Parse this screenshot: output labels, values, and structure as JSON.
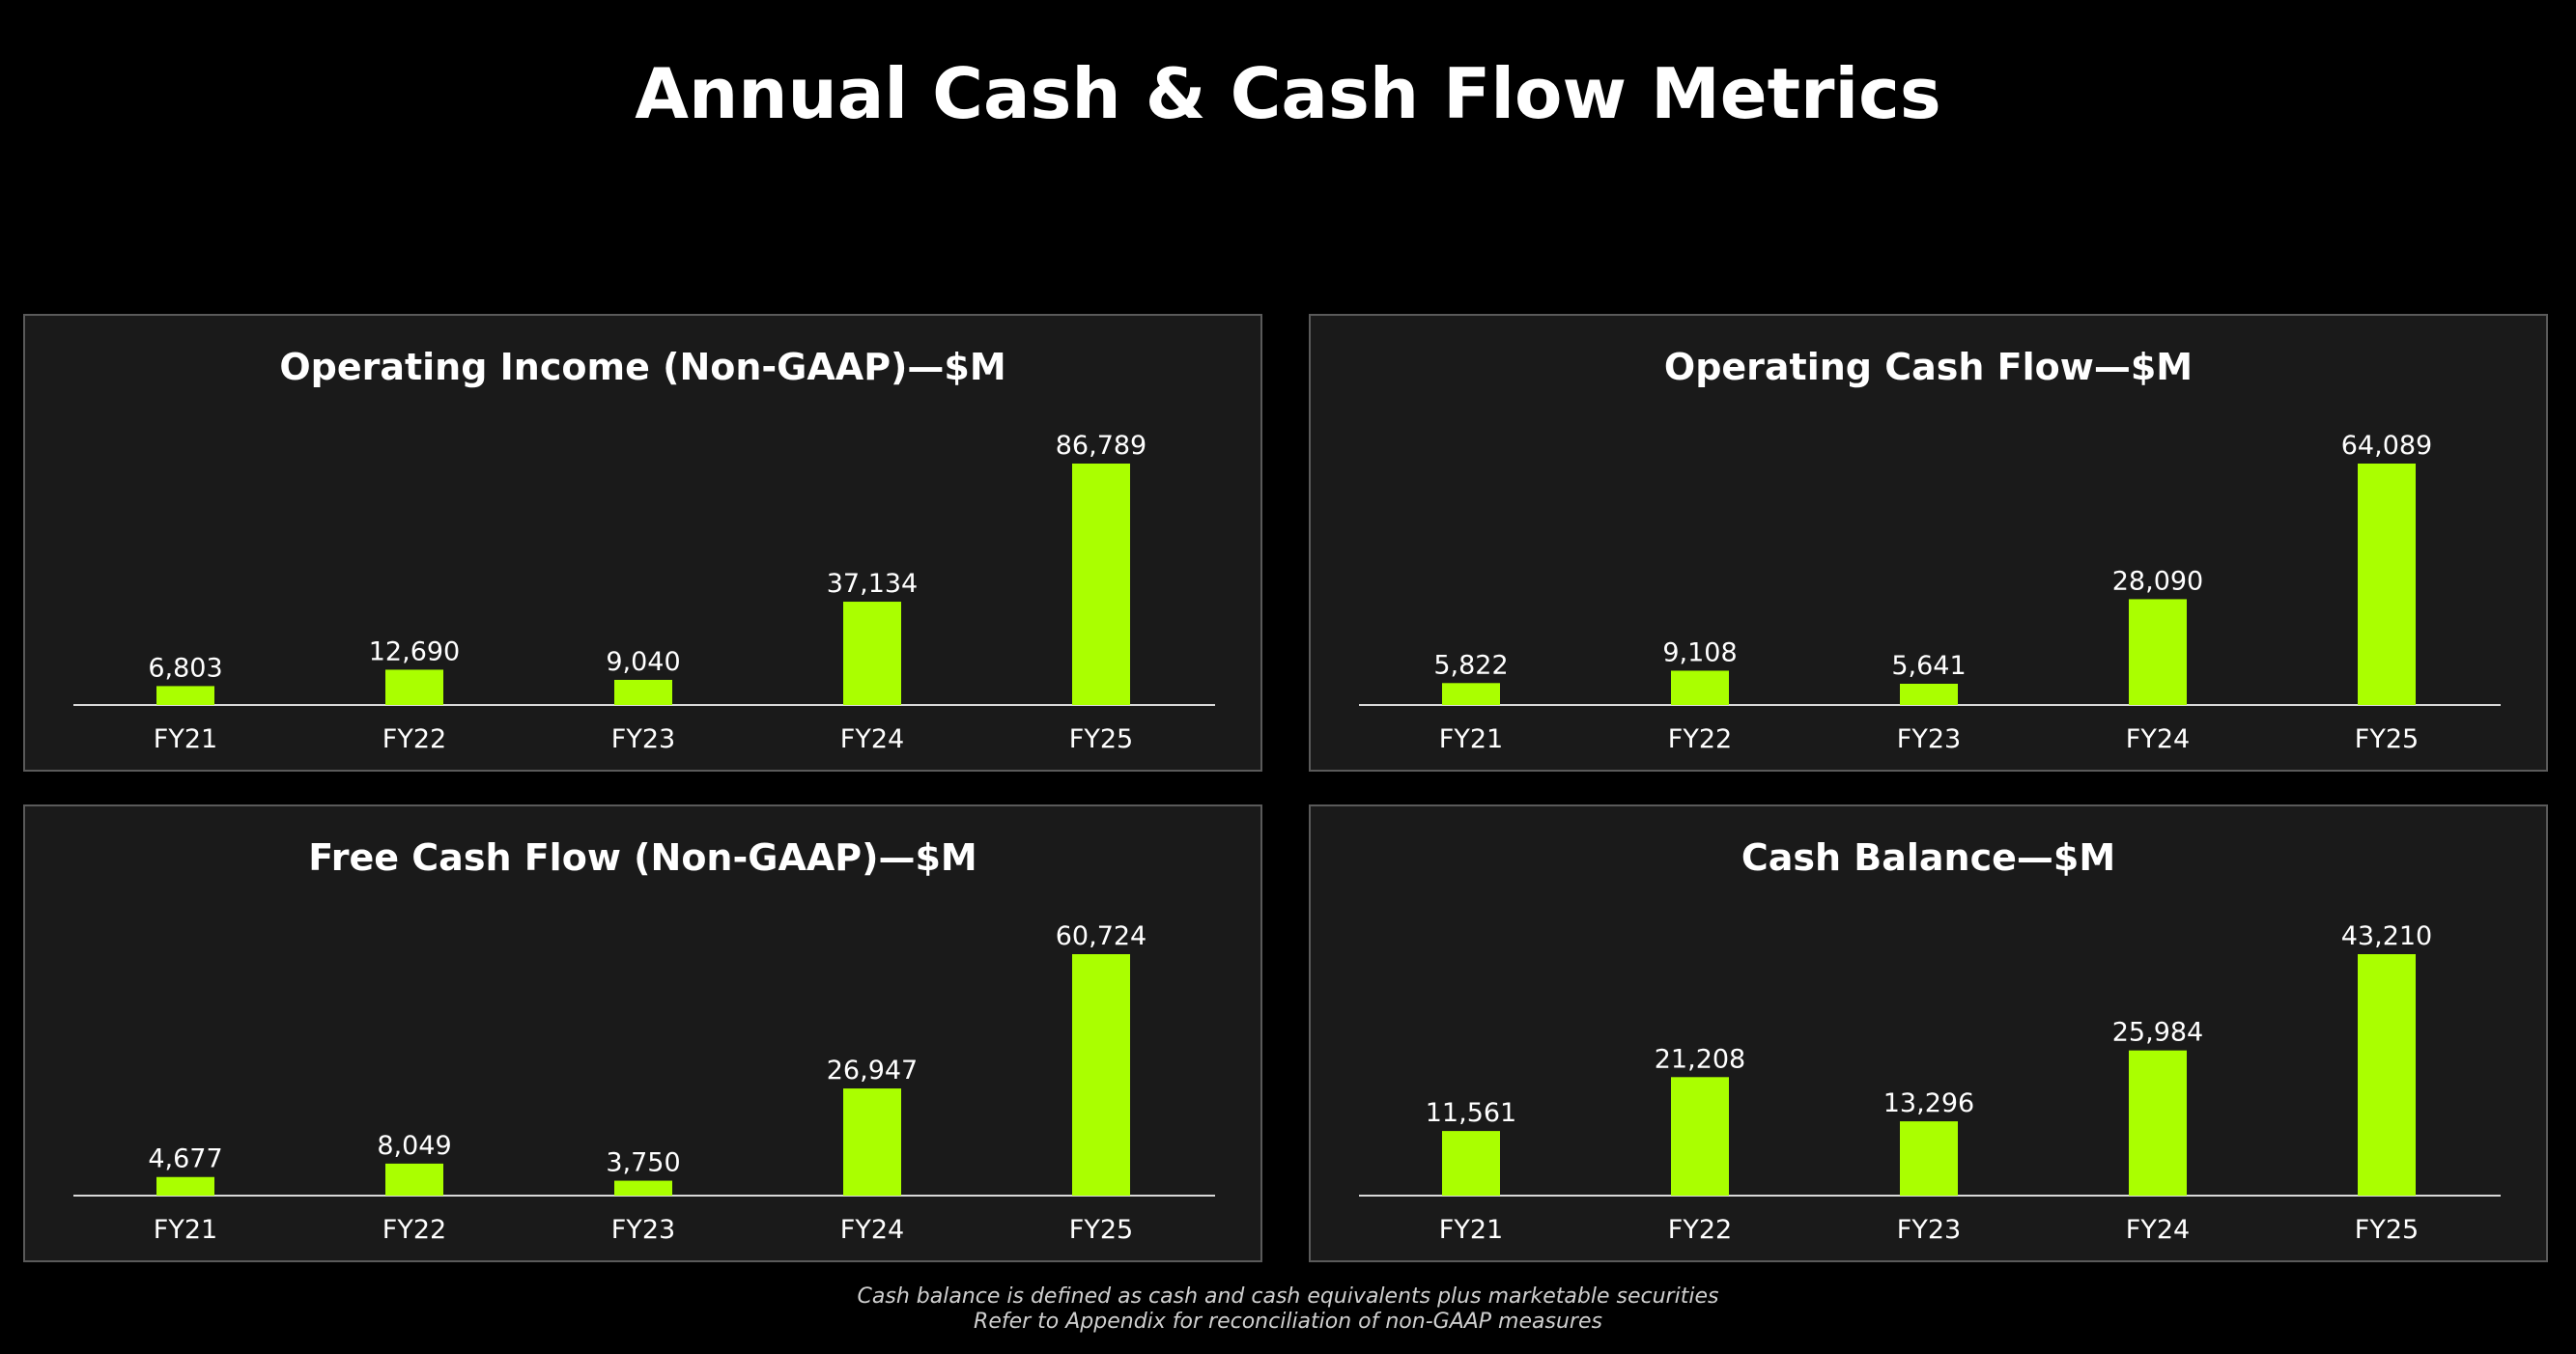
{
  "title": "Annual Cash & Cash Flow Metrics",
  "colors": {
    "background": "#000000",
    "panel": "#1a1a1a",
    "panel_border": "#5a5a5a",
    "bar": "#aaff00",
    "text": "#ffffff",
    "axis": "#d9d9d9"
  },
  "chart_data": [
    {
      "type": "bar",
      "title": "Operating Income (Non-GAAP)—$M",
      "categories": [
        "FY21",
        "FY22",
        "FY23",
        "FY24",
        "FY25"
      ],
      "values": [
        6803,
        12690,
        9040,
        37134,
        86789
      ],
      "labels": [
        "6,803",
        "12,690",
        "9,040",
        "37,134",
        "86,789"
      ],
      "xlabel": "",
      "ylabel": "",
      "grid": false
    },
    {
      "type": "bar",
      "title": "Operating Cash Flow—$M",
      "categories": [
        "FY21",
        "FY22",
        "FY23",
        "FY24",
        "FY25"
      ],
      "values": [
        5822,
        9108,
        5641,
        28090,
        64089
      ],
      "labels": [
        "5,822",
        "9,108",
        "5,641",
        "28,090",
        "64,089"
      ],
      "xlabel": "",
      "ylabel": "",
      "grid": false
    },
    {
      "type": "bar",
      "title": "Free Cash Flow (Non-GAAP)—$M",
      "categories": [
        "FY21",
        "FY22",
        "FY23",
        "FY24",
        "FY25"
      ],
      "values": [
        4677,
        8049,
        3750,
        26947,
        60724
      ],
      "labels": [
        "4,677",
        "8,049",
        "3,750",
        "26,947",
        "60,724"
      ],
      "xlabel": "",
      "ylabel": "",
      "grid": false
    },
    {
      "type": "bar",
      "title": "Cash Balance—$M",
      "categories": [
        "FY21",
        "FY22",
        "FY23",
        "FY24",
        "FY25"
      ],
      "values": [
        11561,
        21208,
        13296,
        25984,
        43210
      ],
      "labels": [
        "11,561",
        "21,208",
        "13,296",
        "25,984",
        "43,210"
      ],
      "xlabel": "",
      "ylabel": "",
      "grid": false
    }
  ],
  "footnotes": {
    "line1": "Cash balance is defined as cash and cash equivalents plus marketable securities",
    "line2": "Refer to Appendix for reconciliation of non-GAAP measures"
  }
}
